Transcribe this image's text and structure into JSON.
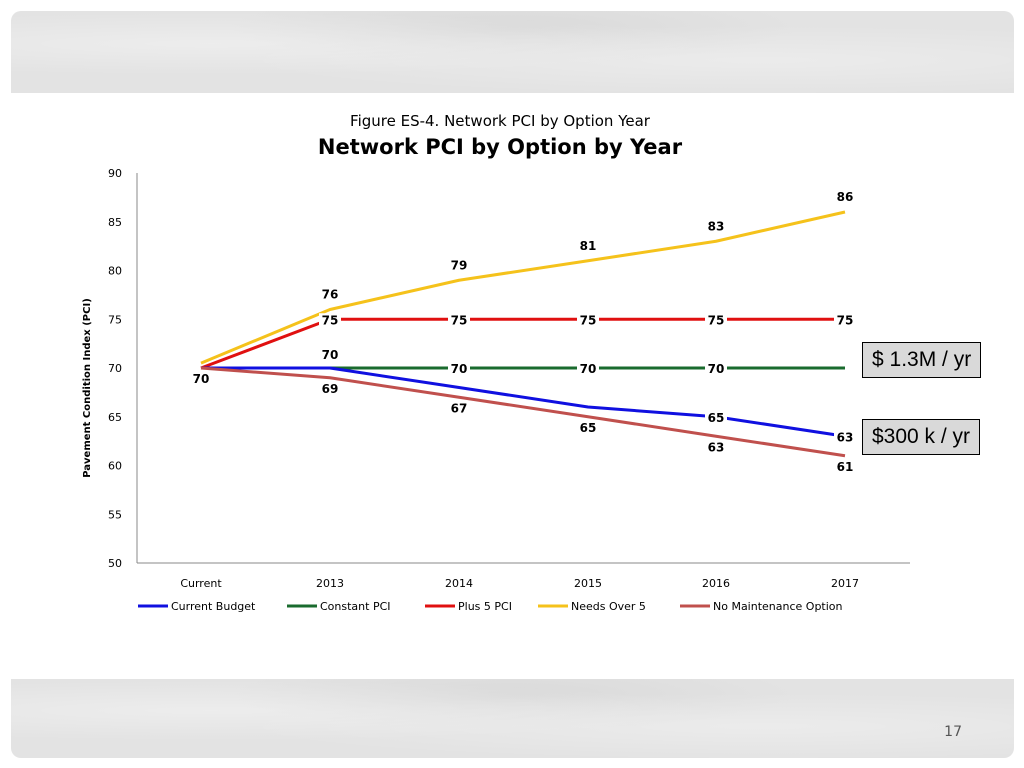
{
  "slide": {
    "number": "17"
  },
  "figure_caption": "Figure ES-4. Network PCI by Option Year",
  "callouts": [
    "$ 1.3M / yr",
    "$300 k / yr"
  ],
  "chart_data": {
    "type": "line",
    "title": "Network PCI by Option by Year",
    "xlabel": "",
    "ylabel": "Pavement Condition Index (PCI)",
    "categories": [
      "Current",
      "2013",
      "2014",
      "2015",
      "2016",
      "2017"
    ],
    "ylim": [
      50,
      90
    ],
    "yticks": [
      50,
      55,
      60,
      65,
      70,
      75,
      80,
      85,
      90
    ],
    "grid": false,
    "legend_position": "bottom",
    "series": [
      {
        "name": "Current Budget",
        "color": "#1010e0",
        "values": [
          70,
          70,
          68,
          66,
          65,
          63
        ],
        "labels": [
          "",
          "",
          "",
          "",
          "65",
          "63"
        ]
      },
      {
        "name": "Constant PCI",
        "color": "#1a6b2e",
        "values": [
          70,
          70,
          70,
          70,
          70,
          70
        ],
        "labels": [
          "",
          "",
          "70",
          "70",
          "70",
          ""
        ]
      },
      {
        "name": "Plus 5 PCI",
        "color": "#e01010",
        "values": [
          70,
          75,
          75,
          75,
          75,
          75
        ],
        "labels": [
          "",
          "75",
          "75",
          "75",
          "75",
          "75"
        ]
      },
      {
        "name": "Needs Over 5",
        "color": "#f5c21b",
        "values": [
          70.5,
          76,
          79,
          81,
          83,
          86
        ],
        "labels": [
          "",
          "76",
          "79",
          "81",
          "83",
          "86"
        ]
      },
      {
        "name": "No Maintenance Option",
        "color": "#c0504d",
        "values": [
          70,
          69,
          67,
          65,
          63,
          61
        ],
        "labels": [
          "70",
          "69",
          "67",
          "65",
          "63",
          "61"
        ]
      }
    ],
    "extra_labels": [
      {
        "category": "2013",
        "value": 70,
        "text": "70"
      }
    ]
  }
}
